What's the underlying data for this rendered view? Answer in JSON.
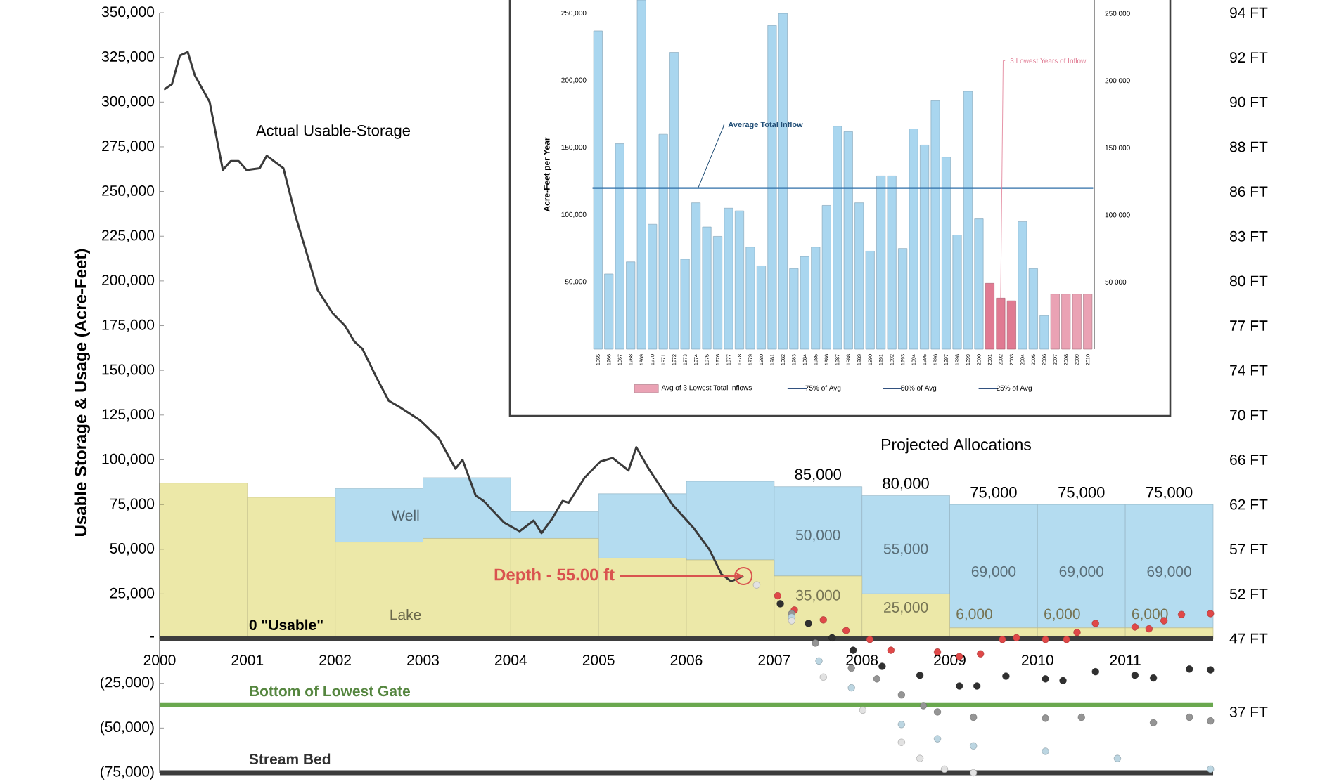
{
  "chart_data": [
    {
      "type": "line",
      "ylabel": "Usable Storage & Usage (Acre-Feet)",
      "stacked": true,
      "xlim": [
        2000,
        2012
      ],
      "xticks": [
        2000,
        2001,
        2002,
        2003,
        2004,
        2005,
        2006,
        2007,
        2008,
        2009,
        2010,
        2011
      ],
      "ylim": [
        -75000,
        350000
      ],
      "yticks": [
        {
          "value": 350000,
          "label": "350,000"
        },
        {
          "value": 325000,
          "label": "325,000"
        },
        {
          "value": 300000,
          "label": "300,000"
        },
        {
          "value": 275000,
          "label": "275,000"
        },
        {
          "value": 250000,
          "label": "250,000"
        },
        {
          "value": 225000,
          "label": "225,000"
        },
        {
          "value": 200000,
          "label": "200,000"
        },
        {
          "value": 175000,
          "label": "175,000"
        },
        {
          "value": 150000,
          "label": "150,000"
        },
        {
          "value": 125000,
          "label": "125,000"
        },
        {
          "value": 100000,
          "label": "100,000"
        },
        {
          "value": 75000,
          "label": "75,000"
        },
        {
          "value": 50000,
          "label": "50,000"
        },
        {
          "value": 25000,
          "label": "25,000"
        },
        {
          "value": 0,
          "label": "-"
        },
        {
          "value": -25000,
          "label": "(25,000)"
        },
        {
          "value": -50000,
          "label": "(50,000)"
        },
        {
          "value": -75000,
          "label": "(75,000)"
        }
      ],
      "series": [
        {
          "name": "Lake",
          "type": "bar",
          "color": "#ece8a8",
          "x": [
            2000.5,
            2001.5,
            2002.5,
            2003.5,
            2004.5,
            2005.5,
            2006.5,
            2007.5,
            2008.5,
            2009.5,
            2010.5,
            2011.5
          ],
          "values": [
            87000,
            79000,
            54000,
            56000,
            56000,
            45000,
            44000,
            35000,
            25000,
            6000,
            6000,
            6000
          ],
          "value_labels": [
            null,
            null,
            null,
            null,
            null,
            null,
            null,
            "35,000",
            "25,000",
            "6,000",
            "6,000",
            "6,000"
          ]
        },
        {
          "name": "Well",
          "type": "bar",
          "color": "#b4dcf0",
          "x": [
            2000.5,
            2001.5,
            2002.5,
            2003.5,
            2004.5,
            2005.5,
            2006.5,
            2007.5,
            2008.5,
            2009.5,
            2010.5,
            2011.5
          ],
          "values": [
            0,
            0,
            30000,
            34000,
            15000,
            36000,
            44000,
            50000,
            55000,
            69000,
            69000,
            69000
          ],
          "value_labels": [
            null,
            null,
            null,
            null,
            null,
            null,
            null,
            "50,000",
            "55,000",
            "69,000",
            "69,000",
            "69,000"
          ]
        },
        {
          "name": "Actual Usable-Storage",
          "type": "line",
          "color": "#3a3a3a",
          "x": [
            2000.05,
            2000.14,
            2000.23,
            2000.32,
            2000.4,
            2000.48,
            2000.57,
            2000.72,
            2000.81,
            2000.9,
            2000.99,
            2001.14,
            2001.22,
            2001.41,
            2001.55,
            2001.8,
            2001.97,
            2002.11,
            2002.22,
            2002.31,
            2002.48,
            2002.61,
            2002.75,
            2002.97,
            2003.18,
            2003.37,
            2003.45,
            2003.6,
            2003.69,
            2003.92,
            2004.1,
            2004.26,
            2004.35,
            2004.47,
            2004.59,
            2004.66,
            2004.84,
            2005.02,
            2005.16,
            2005.34,
            2005.43,
            2005.57,
            2005.84,
            2006.08,
            2006.26,
            2006.4,
            2006.51,
            2006.65
          ],
          "values": [
            307000,
            310000,
            326000,
            328000,
            315000,
            308000,
            300000,
            262000,
            267000,
            267000,
            262000,
            263000,
            270000,
            263000,
            236000,
            195000,
            182000,
            175000,
            166000,
            162000,
            145000,
            133000,
            129000,
            122000,
            112000,
            95000,
            100000,
            80000,
            77000,
            65000,
            60000,
            66000,
            59000,
            67000,
            77000,
            76000,
            90000,
            99000,
            101000,
            94000,
            107000,
            95000,
            75000,
            62000,
            50000,
            36000,
            32000,
            35000
          ]
        },
        {
          "type": "scatter",
          "marker": "circle",
          "color": "#e04848",
          "x": [
            2007.04,
            2007.23,
            2007.56,
            2007.82,
            2008.09,
            2008.33,
            2008.86,
            2009.11,
            2009.35,
            2009.6,
            2009.76,
            2010.09,
            2010.33,
            2010.45,
            2010.66,
            2011.11,
            2011.27,
            2011.44,
            2011.64,
            2011.97
          ],
          "values": [
            24000,
            16000,
            10500,
            4500,
            -500,
            -6500,
            -7500,
            -10000,
            -8500,
            -500,
            500,
            -500,
            -500,
            3500,
            8500,
            6500,
            5500,
            10000,
            13500,
            14000
          ]
        },
        {
          "type": "scatter",
          "marker": "circle",
          "color": "#303030",
          "x": [
            2007.07,
            2007.39,
            2007.66,
            2007.9,
            2008.23,
            2008.66,
            2009.11,
            2009.31,
            2009.64,
            2010.09,
            2010.29,
            2010.66,
            2011.11,
            2011.32,
            2011.73,
            2011.97
          ],
          "values": [
            19500,
            8500,
            500,
            -6500,
            -15500,
            -20500,
            -26500,
            -26500,
            -21000,
            -22500,
            -23500,
            -18500,
            -20500,
            -22000,
            -17000,
            -17500
          ]
        },
        {
          "type": "scatter",
          "marker": "circle",
          "color": "#959595",
          "x": [
            2007.2,
            2007.47,
            2007.88,
            2008.17,
            2008.45,
            2008.7,
            2008.86,
            2009.27,
            2010.09,
            2010.5,
            2011.32,
            2011.73,
            2011.97
          ],
          "values": [
            14000,
            -2500,
            -16500,
            -22500,
            -31500,
            -37500,
            -41000,
            -44000,
            -44500,
            -44000,
            -47000,
            -44000,
            -46000
          ]
        },
        {
          "type": "scatter",
          "marker": "circle",
          "color": "#bcd6e2",
          "x": [
            2007.2,
            2007.51,
            2007.88,
            2008.45,
            2008.86,
            2009.27,
            2010.09,
            2010.91,
            2011.97
          ],
          "values": [
            12000,
            -12500,
            -27500,
            -48000,
            -56000,
            -60000,
            -63000,
            -67000,
            -73000
          ]
        },
        {
          "type": "scatter",
          "marker": "circle",
          "color": "#e2e2e2",
          "x": [
            2006.8,
            2007.2,
            2007.56,
            2008.01,
            2008.45,
            2008.66,
            2008.94,
            2009.27
          ],
          "values": [
            30000,
            10000,
            -21500,
            -40000,
            -58000,
            -67000,
            -73000,
            -75000
          ]
        }
      ],
      "totals": [
        null,
        null,
        null,
        null,
        null,
        null,
        null,
        "85,000",
        "80,000",
        "75,000",
        "75,000",
        "75,000"
      ],
      "ref_lines": [
        {
          "axis": "y",
          "value": -37000,
          "label": "Bottom of Lowest Gate",
          "color": "#6aa84f"
        },
        {
          "axis": "y",
          "value": -75000,
          "label": "Stream Bed",
          "color": "#3c3c3c"
        }
      ],
      "annotations": [
        "Projected Allocations",
        {
          "text": "Depth - 55.00 ft",
          "x": 2006.65,
          "y": 35000
        },
        "94 FT",
        "92 FT",
        "90 FT",
        "88 FT",
        "86 FT",
        "83 FT",
        "80 FT",
        "77 FT",
        "74 FT",
        "70 FT",
        "66 FT",
        "62 FT",
        "57 FT",
        "52 FT",
        "47 FT",
        "37 FT",
        "0 \"Usable\""
      ]
    },
    {
      "type": "bar",
      "ylabel": "Acre-Feet per Year",
      "legend": "bottom",
      "categories": [
        "1965",
        "1966",
        "1967",
        "1968",
        "1969",
        "1970",
        "1971",
        "1972",
        "1973",
        "1974",
        "1975",
        "1976",
        "1977",
        "1978",
        "1979",
        "1980",
        "1981",
        "1982",
        "1983",
        "1984",
        "1985",
        "1986",
        "1987",
        "1988",
        "1989",
        "1990",
        "1991",
        "1992",
        "1993",
        "1994",
        "1995",
        "1996",
        "1997",
        "1998",
        "1999",
        "2000",
        "2001",
        "2002",
        "2003",
        "2004",
        "2005",
        "2006",
        "2007",
        "2008",
        "2009",
        "2010"
      ],
      "ylim": [
        0,
        260000
      ],
      "yticks": [
        {
          "value": 50000,
          "label": "50,000"
        },
        {
          "value": 100000,
          "label": "100,000"
        },
        {
          "value": 150000,
          "label": "150,000"
        },
        {
          "value": 200000,
          "label": "200,000"
        },
        {
          "value": 250000,
          "label": "250,000"
        }
      ],
      "y2lim": [
        0,
        260000
      ],
      "y2ticks": [
        {
          "value": 50000,
          "label": "50 000"
        },
        {
          "value": 100000,
          "label": "100 000"
        },
        {
          "value": 150000,
          "label": "150 000"
        },
        {
          "value": 200000,
          "label": "200 000"
        },
        {
          "value": 250000,
          "label": "250 000"
        }
      ],
      "series": [
        {
          "values": [
            237000,
            56000,
            153000,
            65000,
            260000,
            93000,
            160000,
            221000,
            67000,
            109000,
            91000,
            84000,
            105000,
            103000,
            76000,
            62000,
            241000,
            250000,
            60000,
            69000,
            76000,
            107000,
            166000,
            162000,
            109000,
            73000,
            129000,
            129000,
            75000,
            164000,
            152000,
            185000,
            143000,
            85000,
            192000,
            97000,
            49000,
            38000,
            36000,
            95000,
            60000,
            25000,
            null,
            null,
            null,
            null
          ],
          "colors": [
            "#a9d6ef",
            "#a9d6ef",
            "#a9d6ef",
            "#a9d6ef",
            "#a9d6ef",
            "#a9d6ef",
            "#a9d6ef",
            "#a9d6ef",
            "#a9d6ef",
            "#a9d6ef",
            "#a9d6ef",
            "#a9d6ef",
            "#a9d6ef",
            "#a9d6ef",
            "#a9d6ef",
            "#a9d6ef",
            "#a9d6ef",
            "#a9d6ef",
            "#a9d6ef",
            "#a9d6ef",
            "#a9d6ef",
            "#a9d6ef",
            "#a9d6ef",
            "#a9d6ef",
            "#a9d6ef",
            "#a9d6ef",
            "#a9d6ef",
            "#a9d6ef",
            "#a9d6ef",
            "#a9d6ef",
            "#a9d6ef",
            "#a9d6ef",
            "#a9d6ef",
            "#a9d6ef",
            "#a9d6ef",
            "#a9d6ef",
            "#e07a92",
            "#e07a92",
            "#e07a92",
            "#a9d6ef",
            "#a9d6ef",
            "#a9d6ef",
            "#eaa2b4",
            "#eaa2b4",
            "#eaa2b4",
            "#eaa2b4"
          ]
        },
        {
          "name": "Avg of 3 Lowest Total Inflows",
          "color": "#eaa2b4",
          "values": [
            null,
            null,
            null,
            null,
            null,
            null,
            null,
            null,
            null,
            null,
            null,
            null,
            null,
            null,
            null,
            null,
            null,
            null,
            null,
            null,
            null,
            null,
            null,
            null,
            null,
            null,
            null,
            null,
            null,
            null,
            null,
            null,
            null,
            null,
            null,
            null,
            null,
            null,
            null,
            null,
            null,
            null,
            41000,
            41000,
            41000,
            41000
          ]
        }
      ],
      "ref_lines": [
        {
          "axis": "y",
          "value": 120000,
          "label": "Average Total Inflow",
          "color": "#2f6fa8"
        }
      ],
      "annotations": [
        {
          "text": "3 Lowest Years of Inflow",
          "x": "2002",
          "y": 38000
        },
        "75% of Avg",
        "50% of Avg",
        "25% of Avg"
      ]
    }
  ]
}
